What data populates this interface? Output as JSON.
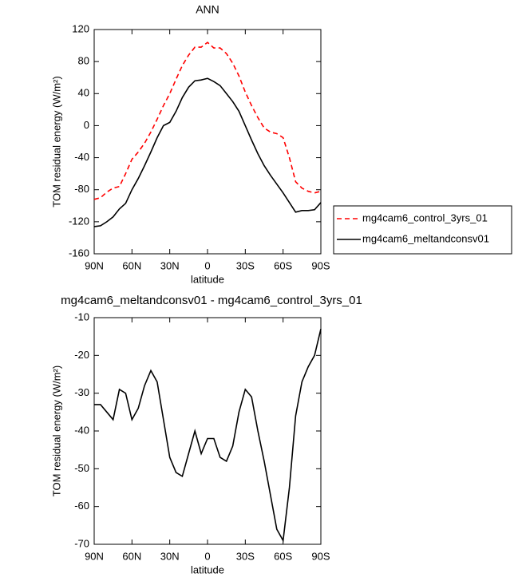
{
  "chart_data": [
    {
      "type": "line",
      "title": "ANN",
      "x_label": "latitude",
      "y_label": "TOM residual energy (W/m²)",
      "x": [
        90,
        85,
        80,
        75,
        70,
        65,
        60,
        55,
        50,
        45,
        40,
        35,
        30,
        25,
        20,
        15,
        10,
        5,
        0,
        -5,
        -10,
        -15,
        -20,
        -25,
        -30,
        -35,
        -40,
        -45,
        -50,
        -55,
        -60,
        -65,
        -70,
        -75,
        -80,
        -85,
        -90
      ],
      "xlim": [
        90,
        -90
      ],
      "xticks": [
        {
          "value": 90,
          "label": "90N"
        },
        {
          "value": 60,
          "label": "60N"
        },
        {
          "value": 30,
          "label": "30N"
        },
        0,
        {
          "value": -30,
          "label": "30S"
        },
        {
          "value": -60,
          "label": "60S"
        },
        {
          "value": -90,
          "label": "90S"
        }
      ],
      "ylim": [
        -160,
        120
      ],
      "yticks": [
        -160,
        -120,
        -80,
        -40,
        0,
        40,
        80,
        120
      ],
      "legend": "right",
      "series": [
        {
          "name": "mg4cam6_control_3yrs_01",
          "color": "#ff0000",
          "linestyle": "dashed",
          "values": [
            -92,
            -90,
            -83,
            -78,
            -76,
            -60,
            -42,
            -33,
            -22,
            -8,
            8,
            25,
            40,
            58,
            75,
            88,
            98,
            98,
            104,
            97,
            97,
            90,
            78,
            62,
            42,
            25,
            10,
            -3,
            -8,
            -10,
            -15,
            -40,
            -70,
            -78,
            -82,
            -84,
            -82
          ]
        },
        {
          "name": "mg4cam6_meltandconsv01",
          "color": "#000000",
          "linestyle": "solid",
          "values": [
            -126,
            -125,
            -120,
            -114,
            -104,
            -97,
            -80,
            -66,
            -50,
            -33,
            -15,
            0,
            4,
            18,
            35,
            48,
            56,
            57,
            59,
            55,
            50,
            40,
            30,
            18,
            0,
            -18,
            -35,
            -50,
            -62,
            -73,
            -84,
            -96,
            -108,
            -106,
            -106,
            -105,
            -96
          ]
        }
      ]
    },
    {
      "type": "line",
      "title": "mg4cam6_meltandconsv01 - mg4cam6_control_3yrs_01",
      "x_label": "latitude",
      "y_label": "TOM residual energy (W/m²)",
      "x": [
        90,
        85,
        80,
        75,
        70,
        65,
        60,
        55,
        50,
        45,
        40,
        35,
        30,
        25,
        20,
        15,
        10,
        5,
        0,
        -5,
        -10,
        -15,
        -20,
        -25,
        -30,
        -35,
        -40,
        -45,
        -50,
        -55,
        -60,
        -65,
        -70,
        -75,
        -80,
        -85,
        -90
      ],
      "xlim": [
        90,
        -90
      ],
      "xticks": [
        {
          "value": 90,
          "label": "90N"
        },
        {
          "value": 60,
          "label": "60N"
        },
        {
          "value": 30,
          "label": "30N"
        },
        0,
        {
          "value": -30,
          "label": "30S"
        },
        {
          "value": -60,
          "label": "60S"
        },
        {
          "value": -90,
          "label": "90S"
        }
      ],
      "ylim": [
        -70,
        -10
      ],
      "yticks": [
        -70,
        -60,
        -50,
        -40,
        -30,
        -20,
        -10
      ],
      "series": [
        {
          "color": "#000000",
          "linestyle": "solid",
          "values": [
            -33,
            -33,
            -35,
            -37,
            -29,
            -30,
            -37,
            -34,
            -28,
            -24,
            -27,
            -37,
            -47,
            -51,
            -52,
            -46,
            -40,
            -46,
            -42,
            -42,
            -47,
            -48,
            -44,
            -35,
            -29,
            -31,
            -40,
            -48,
            -57,
            -66,
            -69,
            -55,
            -36,
            -27,
            -23,
            -20,
            -13
          ]
        }
      ]
    }
  ]
}
